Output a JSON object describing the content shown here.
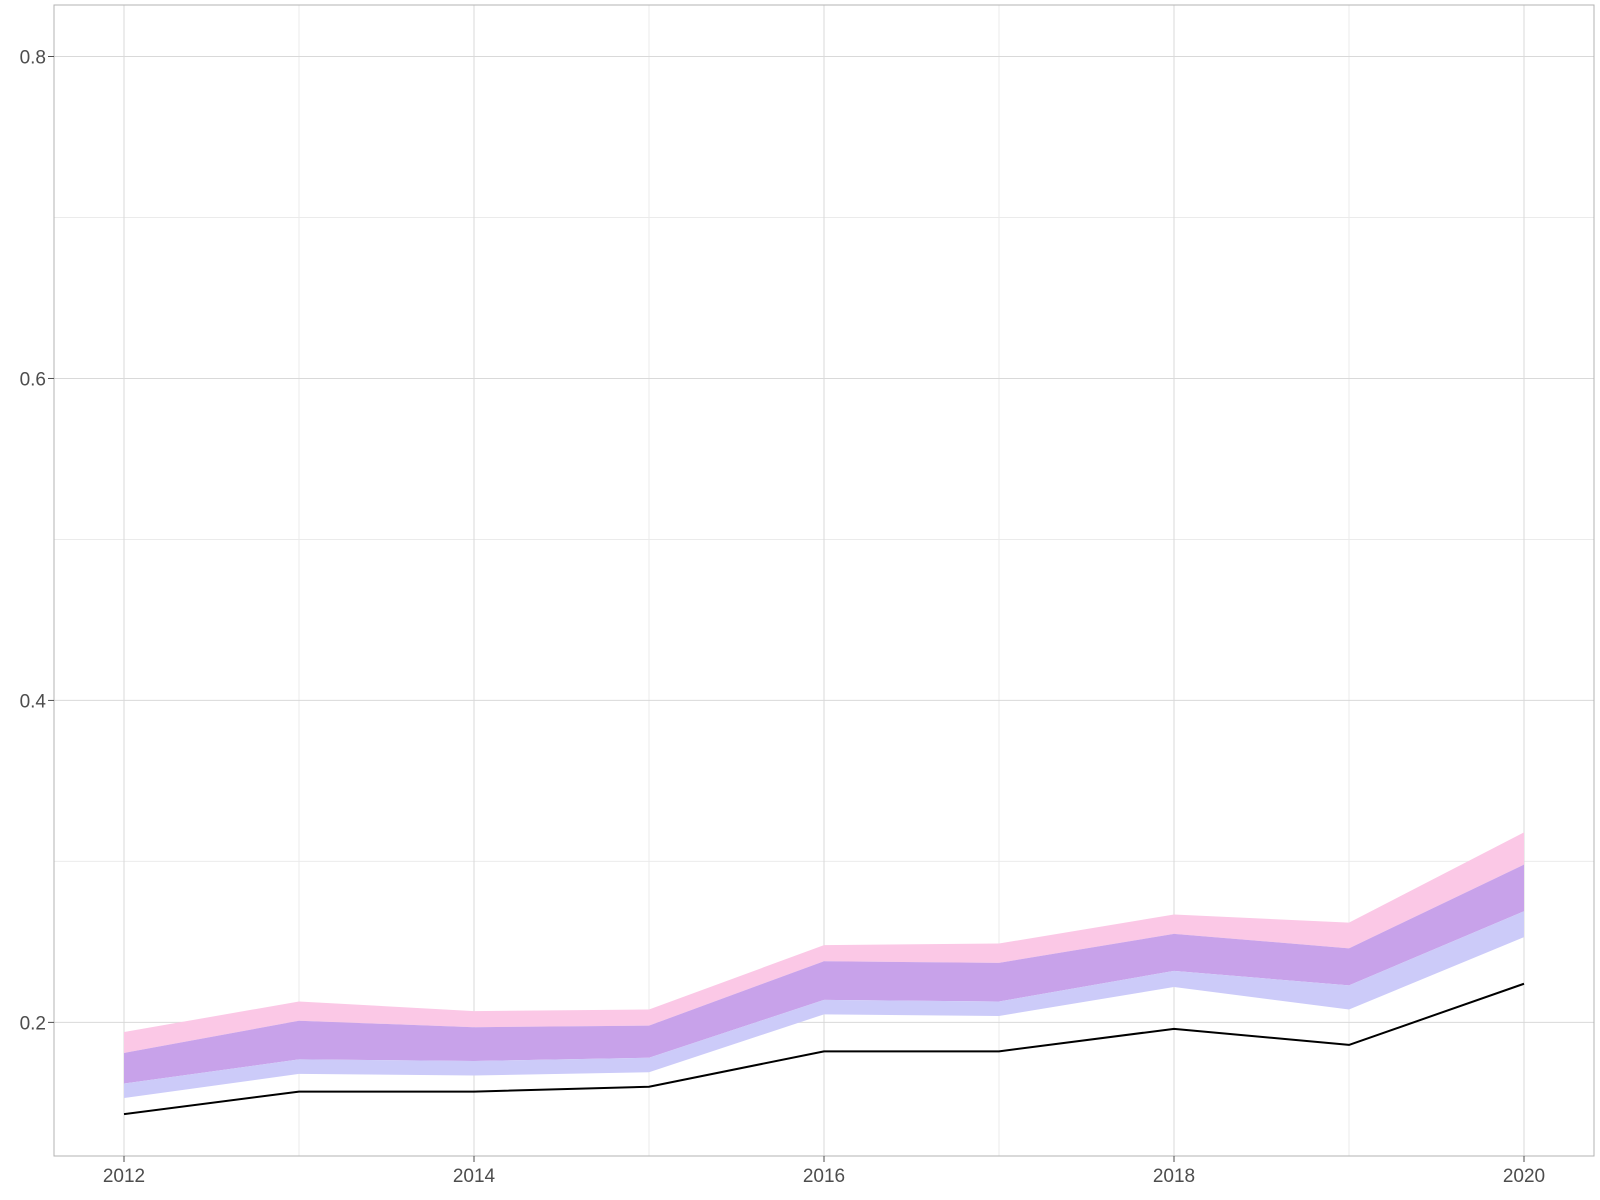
{
  "chart_data": {
    "type": "area",
    "title": "",
    "xlabel": "",
    "ylabel": "",
    "x": [
      2012,
      2013,
      2014,
      2015,
      2016,
      2017,
      2018,
      2019,
      2020
    ],
    "xlim": [
      2011.6,
      2020.4
    ],
    "ylim": [
      0.117,
      0.832
    ],
    "x_ticks": [
      2012,
      2014,
      2016,
      2018,
      2020
    ],
    "x_tick_labels": [
      "2012",
      "2014",
      "2016",
      "2018",
      "2020"
    ],
    "y_ticks": [
      0.2,
      0.4,
      0.6,
      0.8
    ],
    "y_tick_labels": [
      "0.2",
      "0.4",
      "0.6",
      "0.8"
    ],
    "grid": true,
    "legend": "none",
    "series": [
      {
        "kind": "band",
        "color": "#fbc8e6",
        "lower": [
          0.181,
          0.201,
          0.197,
          0.198,
          0.238,
          0.237,
          0.255,
          0.246,
          0.298
        ],
        "upper": [
          0.194,
          0.213,
          0.207,
          0.208,
          0.248,
          0.249,
          0.267,
          0.262,
          0.318
        ]
      },
      {
        "kind": "band",
        "color": "#c8a2ea",
        "lower": [
          0.162,
          0.177,
          0.176,
          0.178,
          0.214,
          0.213,
          0.232,
          0.223,
          0.269
        ],
        "upper": [
          0.181,
          0.201,
          0.197,
          0.198,
          0.238,
          0.237,
          0.255,
          0.246,
          0.298
        ]
      },
      {
        "kind": "band",
        "color": "#cccbf9",
        "lower": [
          0.153,
          0.168,
          0.167,
          0.169,
          0.205,
          0.204,
          0.222,
          0.208,
          0.253
        ],
        "upper": [
          0.162,
          0.177,
          0.176,
          0.178,
          0.214,
          0.213,
          0.232,
          0.223,
          0.269
        ]
      },
      {
        "kind": "line",
        "color": "#000000",
        "values": [
          0.143,
          0.157,
          0.157,
          0.16,
          0.182,
          0.182,
          0.196,
          0.186,
          0.224
        ]
      }
    ]
  }
}
